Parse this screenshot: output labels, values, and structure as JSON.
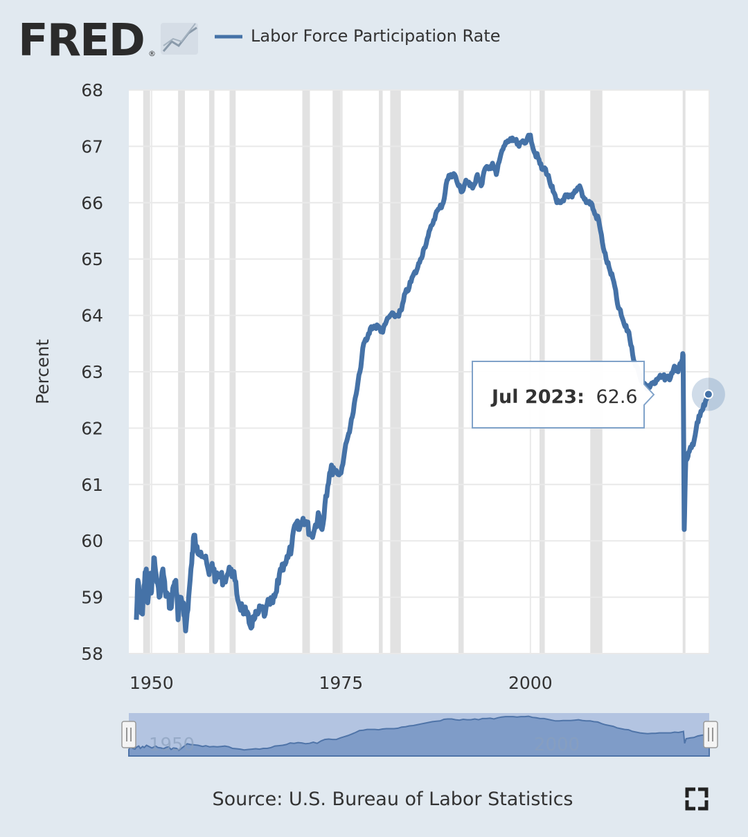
{
  "brand": {
    "logo_text": "FRED",
    "registered_mark": "®"
  },
  "legend": {
    "series_label": "Labor Force Participation Rate"
  },
  "source_text": "Source: U.S. Bureau of Labor Statistics",
  "tooltip": {
    "date_label": "Jul 2023:",
    "value_label": "62.6"
  },
  "navigator": {
    "labels": [
      "1950",
      "2000"
    ]
  },
  "colors": {
    "background": "#e1e9f0",
    "plot_background": "#ffffff",
    "series": "#4572a7",
    "recession": "#e2e2e2",
    "grid": "#e9e9e9",
    "navigator_fill": "#7f9cc8",
    "navigator_window": "#b3c4e1"
  },
  "icons": {
    "fullscreen": "fullscreen-icon",
    "logo_chart": "fred-chart-icon"
  },
  "chart_data": {
    "type": "line",
    "title": "Labor Force Participation Rate",
    "xlabel": "",
    "ylabel": "Percent",
    "xlim": [
      1947.0,
      2023.6
    ],
    "ylim": [
      58,
      68
    ],
    "yticks": [
      58,
      59,
      60,
      61,
      62,
      63,
      64,
      65,
      66,
      67,
      68
    ],
    "xticks": [
      1950,
      1975,
      2000
    ],
    "grid": true,
    "legend_position": "top",
    "recessions": [
      [
        1948.9,
        1949.8
      ],
      [
        1953.5,
        1954.4
      ],
      [
        1957.6,
        1958.3
      ],
      [
        1960.3,
        1961.1
      ],
      [
        1969.9,
        1970.9
      ],
      [
        1973.9,
        1975.2
      ],
      [
        1980.0,
        1980.5
      ],
      [
        1981.5,
        1982.9
      ],
      [
        1990.5,
        1991.2
      ],
      [
        2001.2,
        2001.9
      ],
      [
        2007.9,
        2009.5
      ],
      [
        2020.1,
        2020.3
      ]
    ],
    "series": [
      {
        "name": "Labor Force Participation Rate",
        "x": [
          1948.0,
          1948.2,
          1948.5,
          1948.8,
          1949.0,
          1949.3,
          1949.5,
          1949.8,
          1950.0,
          1950.3,
          1950.6,
          1951.0,
          1951.5,
          1951.8,
          1952.2,
          1952.5,
          1952.9,
          1953.2,
          1953.5,
          1953.8,
          1954.2,
          1954.5,
          1954.9,
          1955.3,
          1955.6,
          1956.0,
          1956.5,
          1957.0,
          1957.6,
          1958.0,
          1958.5,
          1959.0,
          1959.5,
          1960.0,
          1960.5,
          1961.0,
          1961.5,
          1962.0,
          1962.5,
          1963.0,
          1963.5,
          1964.0,
          1964.5,
          1965.0,
          1965.5,
          1966.0,
          1966.5,
          1967.0,
          1967.5,
          1968.0,
          1968.5,
          1969.0,
          1969.5,
          1970.0,
          1970.5,
          1971.0,
          1971.5,
          1972.0,
          1972.5,
          1973.0,
          1973.5,
          1974.0,
          1974.5,
          1975.0,
          1975.5,
          1976.0,
          1976.5,
          1977.0,
          1977.5,
          1978.0,
          1978.5,
          1979.0,
          1979.5,
          1980.0,
          1980.5,
          1981.0,
          1981.5,
          1982.0,
          1982.5,
          1983.0,
          1983.5,
          1984.0,
          1984.5,
          1985.0,
          1985.5,
          1986.0,
          1986.5,
          1987.0,
          1987.5,
          1988.0,
          1988.5,
          1989.0,
          1989.5,
          1990.0,
          1990.5,
          1991.0,
          1991.5,
          1992.0,
          1992.5,
          1993.0,
          1993.5,
          1994.0,
          1994.5,
          1995.0,
          1995.5,
          1996.0,
          1996.5,
          1997.0,
          1997.5,
          1998.0,
          1998.5,
          1999.0,
          1999.5,
          2000.0,
          2000.5,
          2001.0,
          2001.5,
          2002.0,
          2002.5,
          2003.0,
          2003.5,
          2004.0,
          2004.5,
          2005.0,
          2005.5,
          2006.0,
          2006.5,
          2007.0,
          2007.5,
          2008.0,
          2008.5,
          2009.0,
          2009.5,
          2010.0,
          2010.5,
          2011.0,
          2011.5,
          2012.0,
          2012.5,
          2013.0,
          2013.5,
          2014.0,
          2014.5,
          2015.0,
          2015.5,
          2016.0,
          2016.5,
          2017.0,
          2017.5,
          2018.0,
          2018.5,
          2019.0,
          2019.5,
          2020.0,
          2020.15,
          2020.3,
          2020.5,
          2020.8,
          2021.0,
          2021.5,
          2022.0,
          2022.5,
          2023.0,
          2023.5
        ],
        "values": [
          58.6,
          59.3,
          58.9,
          58.7,
          59.2,
          59.5,
          58.9,
          59.4,
          59.1,
          59.7,
          59.4,
          59.0,
          59.5,
          59.1,
          59.0,
          58.8,
          59.2,
          59.3,
          58.6,
          59.0,
          58.9,
          58.4,
          59.0,
          59.6,
          60.1,
          59.9,
          59.8,
          59.7,
          59.4,
          59.6,
          59.3,
          59.4,
          59.3,
          59.4,
          59.5,
          59.3,
          58.9,
          58.8,
          58.7,
          58.5,
          58.6,
          58.7,
          58.8,
          58.7,
          58.9,
          58.9,
          59.1,
          59.5,
          59.6,
          59.7,
          59.9,
          60.3,
          60.2,
          60.4,
          60.3,
          60.1,
          60.2,
          60.5,
          60.2,
          60.8,
          61.2,
          61.3,
          61.2,
          61.2,
          61.6,
          61.9,
          62.2,
          62.6,
          63.0,
          63.5,
          63.6,
          63.8,
          63.8,
          63.8,
          63.7,
          63.9,
          64.0,
          64.0,
          64.0,
          64.1,
          64.4,
          64.5,
          64.7,
          64.8,
          65.0,
          65.2,
          65.4,
          65.6,
          65.8,
          65.9,
          66.0,
          66.4,
          66.5,
          66.5,
          66.3,
          66.2,
          66.4,
          66.3,
          66.3,
          66.5,
          66.3,
          66.6,
          66.6,
          66.7,
          66.5,
          66.8,
          67.0,
          67.1,
          67.1,
          67.1,
          67.0,
          67.1,
          67.1,
          67.2,
          66.9,
          66.8,
          66.6,
          66.6,
          66.4,
          66.2,
          66.0,
          66.0,
          66.1,
          66.1,
          66.1,
          66.2,
          66.3,
          66.1,
          66.0,
          66.0,
          65.8,
          65.7,
          65.3,
          65.0,
          64.8,
          64.6,
          64.2,
          64.0,
          63.8,
          63.7,
          63.3,
          63.1,
          62.9,
          62.8,
          62.7,
          62.8,
          62.8,
          62.9,
          62.9,
          62.9,
          62.9,
          63.1,
          63.0,
          63.2,
          63.3,
          60.2,
          61.4,
          61.5,
          61.6,
          61.7,
          62.1,
          62.3,
          62.4,
          62.6
        ]
      }
    ],
    "highlight": {
      "x": 2023.5,
      "value": 62.6
    },
    "navigator_range": [
      1948,
      2023.5
    ]
  }
}
